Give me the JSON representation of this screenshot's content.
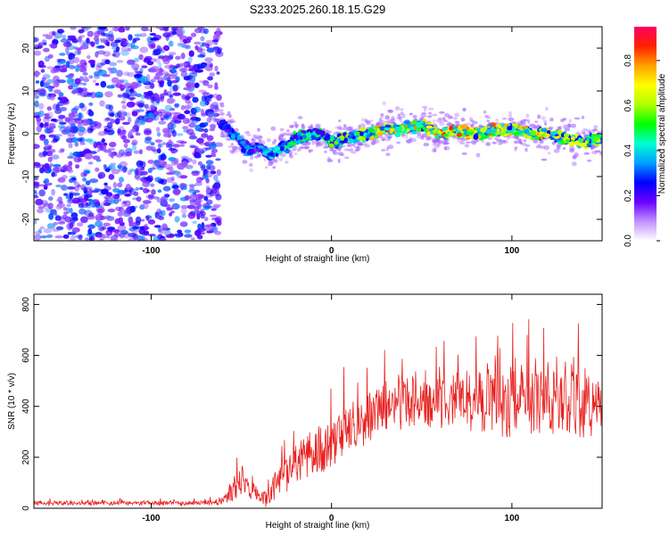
{
  "title": "S233.2025.260.18.15.G29",
  "chart_data": [
    {
      "type": "heatmap",
      "xlabel": "Height of straight line (km)",
      "ylabel": "Frequency (Hz)",
      "xlim": [
        -165,
        150
      ],
      "ylim": [
        -25,
        25
      ],
      "xticks": [
        -100,
        0,
        100
      ],
      "yticks": [
        -20,
        -10,
        0,
        10,
        20
      ],
      "colorbar": {
        "label": "Normalized spectral amplitude",
        "range": [
          0,
          0.95
        ],
        "ticks": [
          0.0,
          0.2,
          0.4,
          0.6,
          0.8
        ],
        "colors": [
          "#ffffff",
          "#c090ff",
          "#6a00ff",
          "#0000ff",
          "#00a0ff",
          "#00ffd0",
          "#00ff00",
          "#b0ff00",
          "#ffff00",
          "#ffa000",
          "#ff2000",
          "#ff0060"
        ]
      },
      "noise_region_x": [
        -165,
        -62
      ],
      "trace": {
        "x": [
          -62,
          -55,
          -50,
          -45,
          -40,
          -35,
          -30,
          -25,
          -20,
          -15,
          -10,
          -5,
          0,
          10,
          20,
          30,
          40,
          50,
          60,
          70,
          80,
          90,
          100,
          110,
          120,
          130,
          140,
          150
        ],
        "frequency": [
          3,
          0,
          -2,
          -4,
          -3,
          -5,
          -4,
          -3,
          -1,
          -1,
          0,
          0,
          -2,
          -1,
          0,
          1,
          1,
          2,
          0,
          1,
          0,
          1,
          1,
          0,
          0,
          -1,
          -2,
          -1
        ],
        "amplitude": [
          0.3,
          0.4,
          0.45,
          0.4,
          0.38,
          0.42,
          0.4,
          0.45,
          0.5,
          0.5,
          0.52,
          0.55,
          0.55,
          0.6,
          0.65,
          0.75,
          0.78,
          0.7,
          0.8,
          0.85,
          0.75,
          0.8,
          0.7,
          0.72,
          0.7,
          0.65,
          0.7,
          0.6
        ]
      }
    },
    {
      "type": "line",
      "xlabel": "Height of straight line (km)",
      "ylabel": "SNR (10 * v/v)",
      "xlim": [
        -165,
        150
      ],
      "ylim": [
        0,
        840
      ],
      "xticks": [
        -100,
        0,
        100
      ],
      "yticks": [
        0,
        200,
        400,
        600,
        800
      ],
      "color": "#e8201e",
      "series": [
        {
          "name": "SNR",
          "x": [
            -165,
            -140,
            -110,
            -80,
            -62,
            -55,
            -50,
            -45,
            -40,
            -35,
            -30,
            -25,
            -20,
            -15,
            -10,
            -5,
            0,
            10,
            20,
            30,
            40,
            50,
            60,
            70,
            80,
            90,
            100,
            110,
            120,
            130,
            140,
            150
          ],
          "mean": [
            20,
            20,
            20,
            20,
            22,
            60,
            120,
            90,
            50,
            40,
            100,
            140,
            170,
            190,
            210,
            230,
            260,
            320,
            370,
            400,
            410,
            420,
            420,
            430,
            440,
            430,
            420,
            420,
            430,
            420,
            410,
            420
          ],
          "spread": [
            10,
            10,
            10,
            10,
            12,
            60,
            80,
            60,
            40,
            40,
            70,
            80,
            90,
            100,
            110,
            110,
            120,
            120,
            120,
            130,
            130,
            130,
            130,
            130,
            140,
            150,
            160,
            160,
            170,
            180,
            200,
            160
          ]
        }
      ]
    }
  ]
}
